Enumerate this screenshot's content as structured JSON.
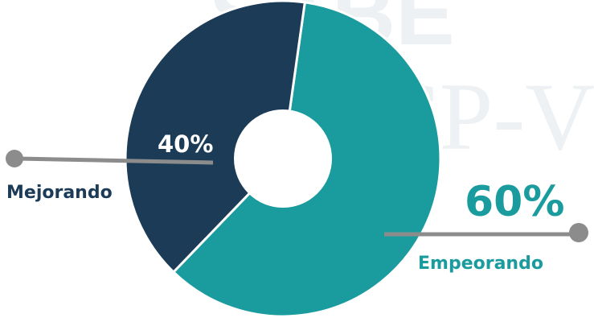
{
  "watermark": {
    "top": "SABE",
    "bottom": "INICP-VI"
  },
  "colors": {
    "mejorando": "#1b3b57",
    "empeorando": "#1a9c9f",
    "connector": "#8c8c8c",
    "watermark": "#eef1f3"
  },
  "chart_data": {
    "type": "pie",
    "donut": true,
    "slices": [
      {
        "label": "Empeorando",
        "value": 60,
        "value_label": "60%",
        "color": "#1a9c9f"
      },
      {
        "label": "Mejorando",
        "value": 40,
        "value_label": "40%",
        "color": "#1b3b57"
      }
    ],
    "start_angle_deg": 8,
    "legend": "none"
  }
}
